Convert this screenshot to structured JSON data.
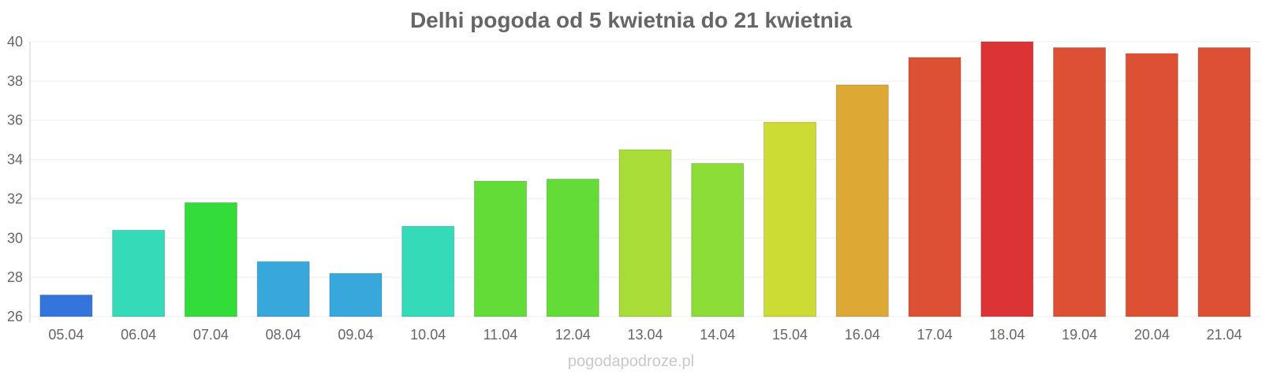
{
  "chart_data": {
    "type": "bar",
    "title": "Delhi pogoda od 5 kwietnia do 21 kwietnia",
    "xlabel": "",
    "ylabel": "",
    "ylim": [
      26,
      40
    ],
    "yticks": [
      26,
      28,
      30,
      32,
      34,
      36,
      38,
      40
    ],
    "grid": true,
    "categories": [
      "05.04",
      "06.04",
      "07.04",
      "08.04",
      "09.04",
      "10.04",
      "11.04",
      "12.04",
      "13.04",
      "14.04",
      "15.04",
      "16.04",
      "17.04",
      "18.04",
      "19.04",
      "20.04",
      "21.04"
    ],
    "values": [
      27.1,
      30.4,
      31.8,
      28.8,
      28.2,
      30.6,
      32.9,
      33.0,
      34.5,
      33.8,
      35.9,
      37.8,
      39.2,
      40.0,
      39.7,
      39.4,
      39.7
    ],
    "colors": [
      "#3375db",
      "#35dbb9",
      "#33dc38",
      "#38a8dc",
      "#38a8dc",
      "#35dbb9",
      "#64dc38",
      "#64dc38",
      "#a8dc36",
      "#8bdc36",
      "#cddc34",
      "#dda934",
      "#dc5034",
      "#dc3434",
      "#dc5034",
      "#dc5034",
      "#dc5034"
    ]
  },
  "watermark": "pogodapodroze.pl"
}
